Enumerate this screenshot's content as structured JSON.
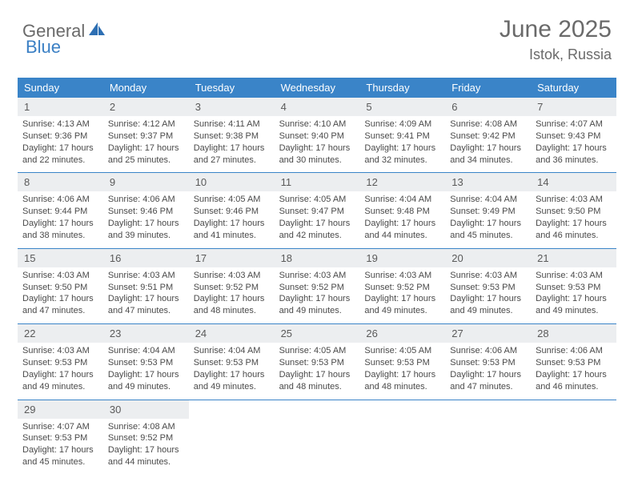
{
  "logo": {
    "general": "General",
    "blue": "Blue"
  },
  "title": "June 2025",
  "location": "Istok, Russia",
  "colors": {
    "header_bg": "#3a84c8",
    "header_text": "#ffffff",
    "daynum_bg": "#eceef0",
    "text": "#4a4a4a",
    "title_text": "#6a6a6a",
    "logo_blue": "#3a7fc4"
  },
  "weekdays": [
    "Sunday",
    "Monday",
    "Tuesday",
    "Wednesday",
    "Thursday",
    "Friday",
    "Saturday"
  ],
  "days": [
    {
      "n": "1",
      "sunrise": "Sunrise: 4:13 AM",
      "sunset": "Sunset: 9:36 PM",
      "daylight1": "Daylight: 17 hours",
      "daylight2": "and 22 minutes."
    },
    {
      "n": "2",
      "sunrise": "Sunrise: 4:12 AM",
      "sunset": "Sunset: 9:37 PM",
      "daylight1": "Daylight: 17 hours",
      "daylight2": "and 25 minutes."
    },
    {
      "n": "3",
      "sunrise": "Sunrise: 4:11 AM",
      "sunset": "Sunset: 9:38 PM",
      "daylight1": "Daylight: 17 hours",
      "daylight2": "and 27 minutes."
    },
    {
      "n": "4",
      "sunrise": "Sunrise: 4:10 AM",
      "sunset": "Sunset: 9:40 PM",
      "daylight1": "Daylight: 17 hours",
      "daylight2": "and 30 minutes."
    },
    {
      "n": "5",
      "sunrise": "Sunrise: 4:09 AM",
      "sunset": "Sunset: 9:41 PM",
      "daylight1": "Daylight: 17 hours",
      "daylight2": "and 32 minutes."
    },
    {
      "n": "6",
      "sunrise": "Sunrise: 4:08 AM",
      "sunset": "Sunset: 9:42 PM",
      "daylight1": "Daylight: 17 hours",
      "daylight2": "and 34 minutes."
    },
    {
      "n": "7",
      "sunrise": "Sunrise: 4:07 AM",
      "sunset": "Sunset: 9:43 PM",
      "daylight1": "Daylight: 17 hours",
      "daylight2": "and 36 minutes."
    },
    {
      "n": "8",
      "sunrise": "Sunrise: 4:06 AM",
      "sunset": "Sunset: 9:44 PM",
      "daylight1": "Daylight: 17 hours",
      "daylight2": "and 38 minutes."
    },
    {
      "n": "9",
      "sunrise": "Sunrise: 4:06 AM",
      "sunset": "Sunset: 9:46 PM",
      "daylight1": "Daylight: 17 hours",
      "daylight2": "and 39 minutes."
    },
    {
      "n": "10",
      "sunrise": "Sunrise: 4:05 AM",
      "sunset": "Sunset: 9:46 PM",
      "daylight1": "Daylight: 17 hours",
      "daylight2": "and 41 minutes."
    },
    {
      "n": "11",
      "sunrise": "Sunrise: 4:05 AM",
      "sunset": "Sunset: 9:47 PM",
      "daylight1": "Daylight: 17 hours",
      "daylight2": "and 42 minutes."
    },
    {
      "n": "12",
      "sunrise": "Sunrise: 4:04 AM",
      "sunset": "Sunset: 9:48 PM",
      "daylight1": "Daylight: 17 hours",
      "daylight2": "and 44 minutes."
    },
    {
      "n": "13",
      "sunrise": "Sunrise: 4:04 AM",
      "sunset": "Sunset: 9:49 PM",
      "daylight1": "Daylight: 17 hours",
      "daylight2": "and 45 minutes."
    },
    {
      "n": "14",
      "sunrise": "Sunrise: 4:03 AM",
      "sunset": "Sunset: 9:50 PM",
      "daylight1": "Daylight: 17 hours",
      "daylight2": "and 46 minutes."
    },
    {
      "n": "15",
      "sunrise": "Sunrise: 4:03 AM",
      "sunset": "Sunset: 9:50 PM",
      "daylight1": "Daylight: 17 hours",
      "daylight2": "and 47 minutes."
    },
    {
      "n": "16",
      "sunrise": "Sunrise: 4:03 AM",
      "sunset": "Sunset: 9:51 PM",
      "daylight1": "Daylight: 17 hours",
      "daylight2": "and 47 minutes."
    },
    {
      "n": "17",
      "sunrise": "Sunrise: 4:03 AM",
      "sunset": "Sunset: 9:52 PM",
      "daylight1": "Daylight: 17 hours",
      "daylight2": "and 48 minutes."
    },
    {
      "n": "18",
      "sunrise": "Sunrise: 4:03 AM",
      "sunset": "Sunset: 9:52 PM",
      "daylight1": "Daylight: 17 hours",
      "daylight2": "and 49 minutes."
    },
    {
      "n": "19",
      "sunrise": "Sunrise: 4:03 AM",
      "sunset": "Sunset: 9:52 PM",
      "daylight1": "Daylight: 17 hours",
      "daylight2": "and 49 minutes."
    },
    {
      "n": "20",
      "sunrise": "Sunrise: 4:03 AM",
      "sunset": "Sunset: 9:53 PM",
      "daylight1": "Daylight: 17 hours",
      "daylight2": "and 49 minutes."
    },
    {
      "n": "21",
      "sunrise": "Sunrise: 4:03 AM",
      "sunset": "Sunset: 9:53 PM",
      "daylight1": "Daylight: 17 hours",
      "daylight2": "and 49 minutes."
    },
    {
      "n": "22",
      "sunrise": "Sunrise: 4:03 AM",
      "sunset": "Sunset: 9:53 PM",
      "daylight1": "Daylight: 17 hours",
      "daylight2": "and 49 minutes."
    },
    {
      "n": "23",
      "sunrise": "Sunrise: 4:04 AM",
      "sunset": "Sunset: 9:53 PM",
      "daylight1": "Daylight: 17 hours",
      "daylight2": "and 49 minutes."
    },
    {
      "n": "24",
      "sunrise": "Sunrise: 4:04 AM",
      "sunset": "Sunset: 9:53 PM",
      "daylight1": "Daylight: 17 hours",
      "daylight2": "and 49 minutes."
    },
    {
      "n": "25",
      "sunrise": "Sunrise: 4:05 AM",
      "sunset": "Sunset: 9:53 PM",
      "daylight1": "Daylight: 17 hours",
      "daylight2": "and 48 minutes."
    },
    {
      "n": "26",
      "sunrise": "Sunrise: 4:05 AM",
      "sunset": "Sunset: 9:53 PM",
      "daylight1": "Daylight: 17 hours",
      "daylight2": "and 48 minutes."
    },
    {
      "n": "27",
      "sunrise": "Sunrise: 4:06 AM",
      "sunset": "Sunset: 9:53 PM",
      "daylight1": "Daylight: 17 hours",
      "daylight2": "and 47 minutes."
    },
    {
      "n": "28",
      "sunrise": "Sunrise: 4:06 AM",
      "sunset": "Sunset: 9:53 PM",
      "daylight1": "Daylight: 17 hours",
      "daylight2": "and 46 minutes."
    },
    {
      "n": "29",
      "sunrise": "Sunrise: 4:07 AM",
      "sunset": "Sunset: 9:53 PM",
      "daylight1": "Daylight: 17 hours",
      "daylight2": "and 45 minutes."
    },
    {
      "n": "30",
      "sunrise": "Sunrise: 4:08 AM",
      "sunset": "Sunset: 9:52 PM",
      "daylight1": "Daylight: 17 hours",
      "daylight2": "and 44 minutes."
    }
  ]
}
